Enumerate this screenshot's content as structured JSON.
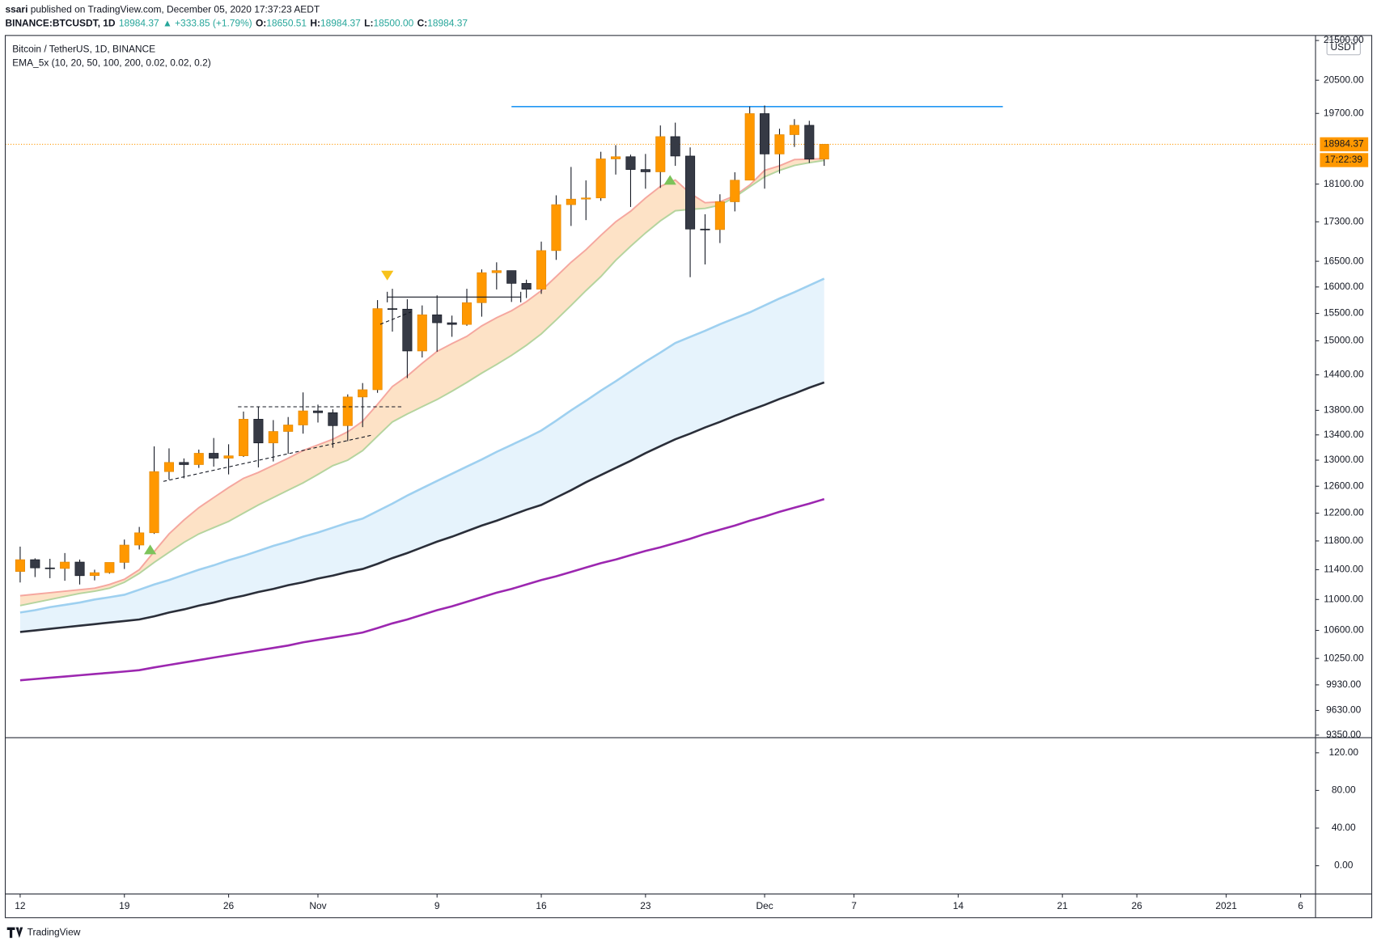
{
  "header": {
    "author": "ssari",
    "published": " published on TradingView.com, December 05, 2020 17:37:23 AEDT",
    "symbol": "BINANCE:BTCUSDT, 1D",
    "last": "18984.37",
    "change": "▲ +333.85 (+1.79%)",
    "ohlc": [
      {
        "label": "O:",
        "value": "18650.51"
      },
      {
        "label": "H:",
        "value": "18984.37"
      },
      {
        "label": "L:",
        "value": "18500.00"
      },
      {
        "label": "C:",
        "value": "18984.37"
      }
    ]
  },
  "chart_data": [
    {
      "type": "candlestick",
      "title": "Bitcoin / TetherUS, 1D, BINANCE",
      "subtitle": "EMA_5x (10, 20, 50, 100, 200, 0.02, 0.02, 0.2)",
      "currency": "USDT",
      "x": [
        "2020-10-12",
        "2020-10-13",
        "2020-10-14",
        "2020-10-15",
        "2020-10-16",
        "2020-10-17",
        "2020-10-18",
        "2020-10-19",
        "2020-10-20",
        "2020-10-21",
        "2020-10-22",
        "2020-10-23",
        "2020-10-24",
        "2020-10-25",
        "2020-10-26",
        "2020-10-27",
        "2020-10-28",
        "2020-10-29",
        "2020-10-30",
        "2020-10-31",
        "2020-11-01",
        "2020-11-02",
        "2020-11-03",
        "2020-11-04",
        "2020-11-05",
        "2020-11-06",
        "2020-11-07",
        "2020-11-08",
        "2020-11-09",
        "2020-11-10",
        "2020-11-11",
        "2020-11-12",
        "2020-11-13",
        "2020-11-14",
        "2020-11-15",
        "2020-11-16",
        "2020-11-17",
        "2020-11-18",
        "2020-11-19",
        "2020-11-20",
        "2020-11-21",
        "2020-11-22",
        "2020-11-23",
        "2020-11-24",
        "2020-11-25",
        "2020-11-26",
        "2020-11-27",
        "2020-11-28",
        "2020-11-29",
        "2020-11-30",
        "2020-12-01",
        "2020-12-02",
        "2020-12-03",
        "2020-12-04",
        "2020-12-05"
      ],
      "open": [
        11376,
        11538,
        11425,
        11417,
        11505,
        11320,
        11360,
        11500,
        11742,
        11916,
        12823,
        12965,
        12931,
        13108,
        13031,
        13068,
        13654,
        13271,
        13455,
        13560,
        13791,
        13761,
        13549,
        14023,
        14145,
        15590,
        15580,
        14818,
        15475,
        15328,
        15297,
        15701,
        16276,
        16317,
        16069,
        15957,
        16713,
        17659,
        17777,
        17802,
        18655,
        18704,
        18419,
        18368,
        19160,
        18719,
        17150,
        17139,
        17720,
        18185,
        19696,
        18765,
        19205,
        19422,
        18650.51
      ],
      "high": [
        11720,
        11557,
        11550,
        11630,
        11540,
        11400,
        11500,
        11820,
        12000,
        13217,
        13185,
        13027,
        13166,
        13350,
        13250,
        13780,
        13859,
        13640,
        13690,
        14100,
        13895,
        13818,
        14067,
        14259,
        15750,
        15965,
        15766,
        15650,
        15840,
        15460,
        15965,
        16340,
        16480,
        16317,
        16140,
        16894,
        17858,
        18476,
        18180,
        18815,
        18965,
        18750,
        18766,
        19418,
        19484,
        18915,
        17457,
        17880,
        18358,
        19863,
        19888,
        19342,
        19566,
        19527,
        18984.37
      ],
      "low": [
        11227,
        11300,
        11285,
        11250,
        11200,
        11255,
        11346,
        11410,
        11680,
        11900,
        12700,
        12720,
        12880,
        12900,
        12780,
        13050,
        12888,
        12980,
        13100,
        13420,
        13600,
        13195,
        13300,
        13525,
        14093,
        15166,
        14344,
        14703,
        14805,
        15072,
        15272,
        15440,
        15952,
        15715,
        15789,
        15868,
        16528,
        17214,
        17335,
        17740,
        18308,
        17610,
        18000,
        18018,
        18500,
        16188,
        16438,
        16865,
        17517,
        18185,
        18001,
        18330,
        18925,
        18565,
        18500
      ],
      "close": [
        11538,
        11425,
        11417,
        11505,
        11319,
        11360,
        11500,
        11742,
        11916,
        12823,
        12965,
        12931,
        13108,
        13031,
        13068,
        13654,
        13271,
        13455,
        13560,
        13791,
        13761,
        13549,
        14023,
        14145,
        15590,
        15580,
        14818,
        15475,
        15328,
        15297,
        15701,
        16276,
        16317,
        16069,
        15957,
        16713,
        17659,
        17777,
        17802,
        18655,
        18704,
        18419,
        18368,
        19160,
        18719,
        17150,
        17139,
        17720,
        18185,
        19696,
        18765,
        19205,
        19422,
        18650,
        18984.37
      ],
      "up_color": "#ff9800",
      "down_color": "#363a45",
      "series": [
        {
          "color": "#f5a79f",
          "values": [
            11050,
            11070,
            11090,
            11110,
            11130,
            11150,
            11200,
            11270,
            11400,
            11650,
            11900,
            12100,
            12280,
            12430,
            12580,
            12720,
            12810,
            12920,
            13030,
            13150,
            13240,
            13330,
            13450,
            13620,
            13900,
            14200,
            14380,
            14600,
            14810,
            14950,
            15080,
            15270,
            15420,
            15550,
            15720,
            15930,
            16200,
            16480,
            16730,
            17020,
            17300,
            17520,
            17800,
            18050,
            18190,
            17900,
            17700,
            17720,
            17850,
            18080,
            18400,
            18500,
            18640,
            18650,
            18660
          ]
        },
        {
          "color": "#b5d49e",
          "values": [
            10920,
            10960,
            11000,
            11040,
            11080,
            11110,
            11150,
            11230,
            11350,
            11500,
            11640,
            11780,
            11900,
            11990,
            12080,
            12200,
            12320,
            12430,
            12540,
            12650,
            12780,
            12915,
            13000,
            13150,
            13380,
            13610,
            13740,
            13860,
            13980,
            14120,
            14270,
            14430,
            14580,
            14740,
            14920,
            15125,
            15380,
            15650,
            15930,
            16200,
            16520,
            16800,
            17070,
            17320,
            17530,
            17560,
            17580,
            17650,
            17820,
            18040,
            18260,
            18400,
            18510,
            18570,
            18620
          ]
        },
        {
          "color": "#9ed0f0",
          "values": [
            10830,
            10860,
            10900,
            10930,
            10960,
            11000,
            11030,
            11063,
            11130,
            11200,
            11260,
            11330,
            11400,
            11460,
            11530,
            11590,
            11660,
            11730,
            11790,
            11860,
            11920,
            11990,
            12060,
            12120,
            12230,
            12340,
            12460,
            12570,
            12680,
            12790,
            12900,
            13010,
            13130,
            13240,
            13350,
            13470,
            13630,
            13800,
            13960,
            14130,
            14290,
            14460,
            14630,
            14790,
            14960,
            15070,
            15180,
            15300,
            15410,
            15520,
            15650,
            15780,
            15900,
            16030,
            16160
          ]
        },
        {
          "color": "#2a2e39",
          "values": [
            10580,
            10600,
            10620,
            10640,
            10660,
            10680,
            10700,
            10720,
            10740,
            10780,
            10830,
            10870,
            10920,
            10960,
            11010,
            11050,
            11100,
            11140,
            11190,
            11230,
            11280,
            11320,
            11370,
            11410,
            11480,
            11560,
            11630,
            11710,
            11790,
            11860,
            11940,
            12020,
            12090,
            12170,
            12250,
            12320,
            12430,
            12540,
            12660,
            12770,
            12880,
            12990,
            13110,
            13220,
            13330,
            13420,
            13520,
            13610,
            13710,
            13800,
            13890,
            13990,
            14080,
            14180,
            14270
          ]
        },
        {
          "color": "#9c27b0",
          "values": [
            9985,
            10000,
            10015,
            10030,
            10045,
            10060,
            10075,
            10090,
            10107,
            10140,
            10170,
            10200,
            10230,
            10260,
            10290,
            10320,
            10350,
            10380,
            10410,
            10450,
            10480,
            10510,
            10540,
            10573,
            10630,
            10690,
            10740,
            10800,
            10860,
            10910,
            10970,
            11030,
            11090,
            11140,
            11200,
            11260,
            11310,
            11370,
            11430,
            11490,
            11540,
            11600,
            11660,
            11710,
            11770,
            11830,
            11900,
            11960,
            12020,
            12090,
            12150,
            12220,
            12280,
            12340,
            12407
          ]
        }
      ],
      "band_fills": [
        {
          "between": [
            0,
            1
          ],
          "color": "#fde2c6"
        },
        {
          "between": [
            2,
            3
          ],
          "color": "#e6f3fc"
        }
      ],
      "resistance": {
        "value": 19863,
        "x": [
          "2020-11-14",
          "2020-12-17"
        ],
        "color": "#2196f3"
      },
      "last_price_label": "18984.37",
      "countdown": "17:22:39",
      "log_scale": true,
      "ylim": [
        9340,
        21630
      ],
      "yticks": [
        {
          "value": 21500,
          "label": "21500.00"
        },
        {
          "value": 20500,
          "label": "20500.00"
        },
        {
          "value": 19700,
          "label": "19700.00"
        },
        {
          "value": 18100,
          "label": "18100.00"
        },
        {
          "value": 17300,
          "label": "17300.00"
        },
        {
          "value": 16500,
          "label": "16500.00"
        },
        {
          "value": 16000,
          "label": "16000.00"
        },
        {
          "value": 15500,
          "label": "15500.00"
        },
        {
          "value": 15000,
          "label": "15000.00"
        },
        {
          "value": 14400,
          "label": "14400.00"
        },
        {
          "value": 13800,
          "label": "13800.00"
        },
        {
          "value": 13400,
          "label": "13400.00"
        },
        {
          "value": 13000,
          "label": "13000.00"
        },
        {
          "value": 12600,
          "label": "12600.00"
        },
        {
          "value": 12200,
          "label": "12200.00"
        },
        {
          "value": 11800,
          "label": "11800.00"
        },
        {
          "value": 11400,
          "label": "11400.00"
        },
        {
          "value": 11000,
          "label": "11000.00"
        },
        {
          "value": 10600,
          "label": "10600.00"
        },
        {
          "value": 10250,
          "label": "10250.00"
        },
        {
          "value": 9930,
          "label": "9930.00"
        },
        {
          "value": 9630,
          "label": "9630.00"
        },
        {
          "value": 9350,
          "label": "9350.00"
        }
      ],
      "xlim": [
        "2020-10-11",
        "2021-01-07"
      ],
      "xticks": [
        {
          "value": "2020-10-12",
          "label": "12"
        },
        {
          "value": "2020-10-19",
          "label": "19"
        },
        {
          "value": "2020-10-26",
          "label": "26"
        },
        {
          "value": "2020-11-01",
          "label": "Nov"
        },
        {
          "value": "2020-11-09",
          "label": "9"
        },
        {
          "value": "2020-11-16",
          "label": "16"
        },
        {
          "value": "2020-11-23",
          "label": "23"
        },
        {
          "value": "2020-12-01",
          "label": "Dec"
        },
        {
          "value": "2020-12-07",
          "label": "7"
        },
        {
          "value": "2020-12-14",
          "label": "14"
        },
        {
          "value": "2020-12-21",
          "label": "21"
        },
        {
          "value": "2020-12-26",
          "label": "26"
        },
        {
          "value": "2021-01-01",
          "label": "2021"
        },
        {
          "value": "2021-01-06",
          "label": "6"
        }
      ]
    },
    {
      "type": "pane",
      "ylim": [
        -30,
        136
      ],
      "yticks": [
        {
          "value": 120,
          "label": "120.00"
        },
        {
          "value": 80,
          "label": "80.00"
        },
        {
          "value": 40,
          "label": "40.00"
        },
        {
          "value": 0,
          "label": "0.00"
        }
      ]
    }
  ],
  "footer": {
    "brand": "TradingView"
  }
}
